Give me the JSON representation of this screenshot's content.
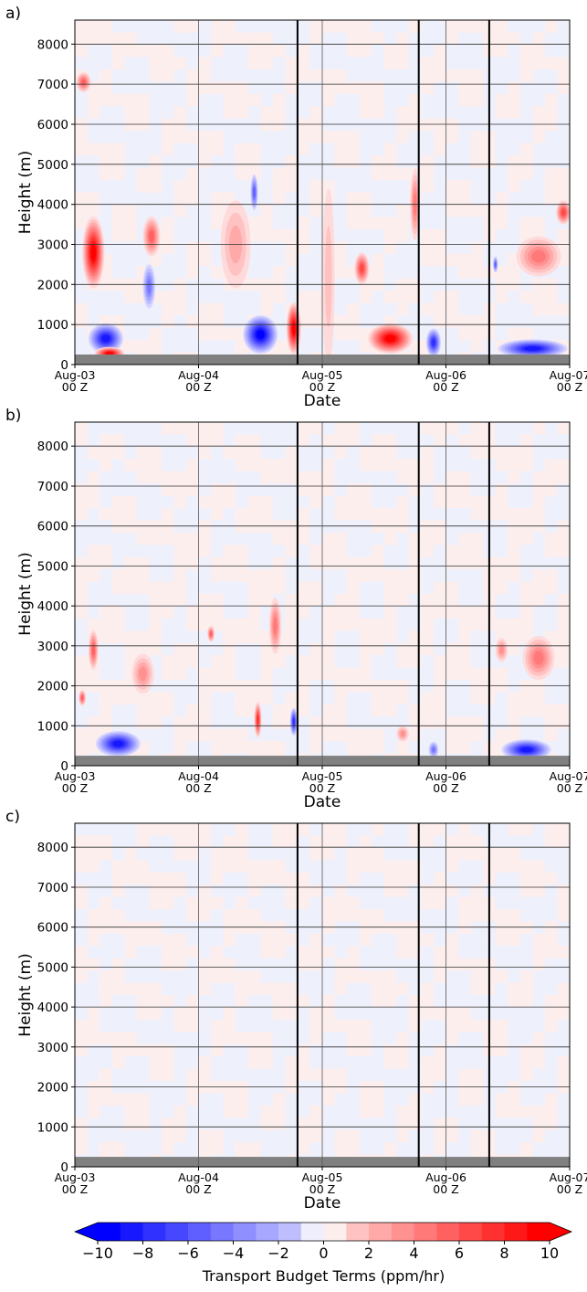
{
  "chart_data": [
    {
      "panel_label": "a)",
      "type": "heatmap",
      "xlabel": "Date",
      "ylabel": "Height (m)",
      "ylim": [
        0,
        8600
      ],
      "yticks": [
        0,
        1000,
        2000,
        3000,
        4000,
        5000,
        6000,
        7000,
        8000
      ],
      "xticks": [
        {
          "value": 0,
          "line1": "Aug-03",
          "line2": "00 Z"
        },
        {
          "value": 1,
          "line1": "Aug-04",
          "line2": "00 Z"
        },
        {
          "value": 2,
          "line1": "Aug-05",
          "line2": "00 Z"
        },
        {
          "value": 3,
          "line1": "Aug-06",
          "line2": "00 Z"
        },
        {
          "value": 4,
          "line1": "Aug-07",
          "line2": "00 Z"
        }
      ],
      "grid": true,
      "ground_top": 250,
      "event_lines": [
        1.8,
        2.78,
        3.35
      ],
      "features": [
        {
          "t": 0.15,
          "h": 2800,
          "v": 10,
          "dt": 0.09,
          "dh": 900
        },
        {
          "t": 0.07,
          "h": 7050,
          "v": 6,
          "dt": 0.06,
          "dh": 250
        },
        {
          "t": 0.25,
          "h": 650,
          "v": -9,
          "dt": 0.14,
          "dh": 380
        },
        {
          "t": 0.28,
          "h": 280,
          "v": 10,
          "dt": 0.12,
          "dh": 160
        },
        {
          "t": 0.62,
          "h": 3200,
          "v": 6,
          "dt": 0.07,
          "dh": 500
        },
        {
          "t": 0.6,
          "h": 1950,
          "v": -5,
          "dt": 0.05,
          "dh": 550
        },
        {
          "t": 1.45,
          "h": 4300,
          "v": -6,
          "dt": 0.03,
          "dh": 450
        },
        {
          "t": 1.5,
          "h": 750,
          "v": -10,
          "dt": 0.14,
          "dh": 480
        },
        {
          "t": 1.3,
          "h": 3000,
          "v": 3,
          "dt": 0.12,
          "dh": 1100
        },
        {
          "t": 1.77,
          "h": 900,
          "v": 10,
          "dt": 0.06,
          "dh": 650
        },
        {
          "t": 2.05,
          "h": 2200,
          "v": 2,
          "dt": 0.05,
          "dh": 2200
        },
        {
          "t": 2.32,
          "h": 2400,
          "v": 7,
          "dt": 0.06,
          "dh": 400
        },
        {
          "t": 2.55,
          "h": 650,
          "v": 10,
          "dt": 0.18,
          "dh": 380
        },
        {
          "t": 2.75,
          "h": 4000,
          "v": 5,
          "dt": 0.04,
          "dh": 900
        },
        {
          "t": 2.9,
          "h": 550,
          "v": -8,
          "dt": 0.06,
          "dh": 350
        },
        {
          "t": 3.4,
          "h": 2500,
          "v": -6,
          "dt": 0.02,
          "dh": 200
        },
        {
          "t": 3.7,
          "h": 400,
          "v": -9,
          "dt": 0.28,
          "dh": 230
        },
        {
          "t": 3.75,
          "h": 2700,
          "v": 5,
          "dt": 0.18,
          "dh": 500
        },
        {
          "t": 3.95,
          "h": 3800,
          "v": 7,
          "dt": 0.06,
          "dh": 300
        }
      ]
    },
    {
      "panel_label": "b)",
      "type": "heatmap",
      "xlabel": "Date",
      "ylabel": "Height (m)",
      "ylim": [
        0,
        8600
      ],
      "yticks": [
        0,
        1000,
        2000,
        3000,
        4000,
        5000,
        6000,
        7000,
        8000
      ],
      "xticks": [
        {
          "value": 0,
          "line1": "Aug-03",
          "line2": "00 Z"
        },
        {
          "value": 1,
          "line1": "Aug-04",
          "line2": "00 Z"
        },
        {
          "value": 2,
          "line1": "Aug-05",
          "line2": "00 Z"
        },
        {
          "value": 3,
          "line1": "Aug-06",
          "line2": "00 Z"
        },
        {
          "value": 4,
          "line1": "Aug-07",
          "line2": "00 Z"
        }
      ],
      "grid": true,
      "ground_top": 250,
      "event_lines": [
        1.8,
        2.78,
        3.35
      ],
      "features": [
        {
          "t": 0.06,
          "h": 1700,
          "v": 6,
          "dt": 0.03,
          "dh": 200
        },
        {
          "t": 0.15,
          "h": 2900,
          "v": 6,
          "dt": 0.04,
          "dh": 500
        },
        {
          "t": 0.35,
          "h": 550,
          "v": -9,
          "dt": 0.18,
          "dh": 320
        },
        {
          "t": 0.55,
          "h": 2300,
          "v": 4,
          "dt": 0.09,
          "dh": 500
        },
        {
          "t": 1.1,
          "h": 3300,
          "v": 6,
          "dt": 0.03,
          "dh": 200
        },
        {
          "t": 1.48,
          "h": 1150,
          "v": 8,
          "dt": 0.03,
          "dh": 450
        },
        {
          "t": 1.62,
          "h": 3500,
          "v": 5,
          "dt": 0.05,
          "dh": 700
        },
        {
          "t": 1.77,
          "h": 1100,
          "v": -8,
          "dt": 0.03,
          "dh": 350
        },
        {
          "t": 2.65,
          "h": 800,
          "v": 4,
          "dt": 0.05,
          "dh": 200
        },
        {
          "t": 2.9,
          "h": 400,
          "v": -5,
          "dt": 0.04,
          "dh": 200
        },
        {
          "t": 3.65,
          "h": 400,
          "v": -9,
          "dt": 0.2,
          "dh": 260
        },
        {
          "t": 3.75,
          "h": 2700,
          "v": 5,
          "dt": 0.13,
          "dh": 550
        },
        {
          "t": 3.45,
          "h": 2900,
          "v": 4,
          "dt": 0.05,
          "dh": 300
        }
      ]
    },
    {
      "panel_label": "c)",
      "type": "heatmap",
      "xlabel": "Date",
      "ylabel": "Height (m)",
      "ylim": [
        0,
        8600
      ],
      "yticks": [
        0,
        1000,
        2000,
        3000,
        4000,
        5000,
        6000,
        7000,
        8000
      ],
      "xticks": [
        {
          "value": 0,
          "line1": "Aug-03",
          "line2": "00 Z"
        },
        {
          "value": 1,
          "line1": "Aug-04",
          "line2": "00 Z"
        },
        {
          "value": 2,
          "line1": "Aug-05",
          "line2": "00 Z"
        },
        {
          "value": 3,
          "line1": "Aug-06",
          "line2": "00 Z"
        },
        {
          "value": 4,
          "line1": "Aug-07",
          "line2": "00 Z"
        }
      ],
      "grid": true,
      "ground_top": 250,
      "event_lines": [
        1.8,
        2.78,
        3.35
      ],
      "features": []
    }
  ],
  "colorbar": {
    "label": "Transport Budget Terms (ppm/hr)",
    "range": [
      -10,
      10
    ],
    "step": 1,
    "ticks": [
      "−10",
      "−8",
      "−6",
      "−4",
      "−2",
      "0",
      "2",
      "4",
      "6",
      "8",
      "10"
    ],
    "extend": "both",
    "negative_color": "#0000ff",
    "positive_color": "#ff0000"
  }
}
